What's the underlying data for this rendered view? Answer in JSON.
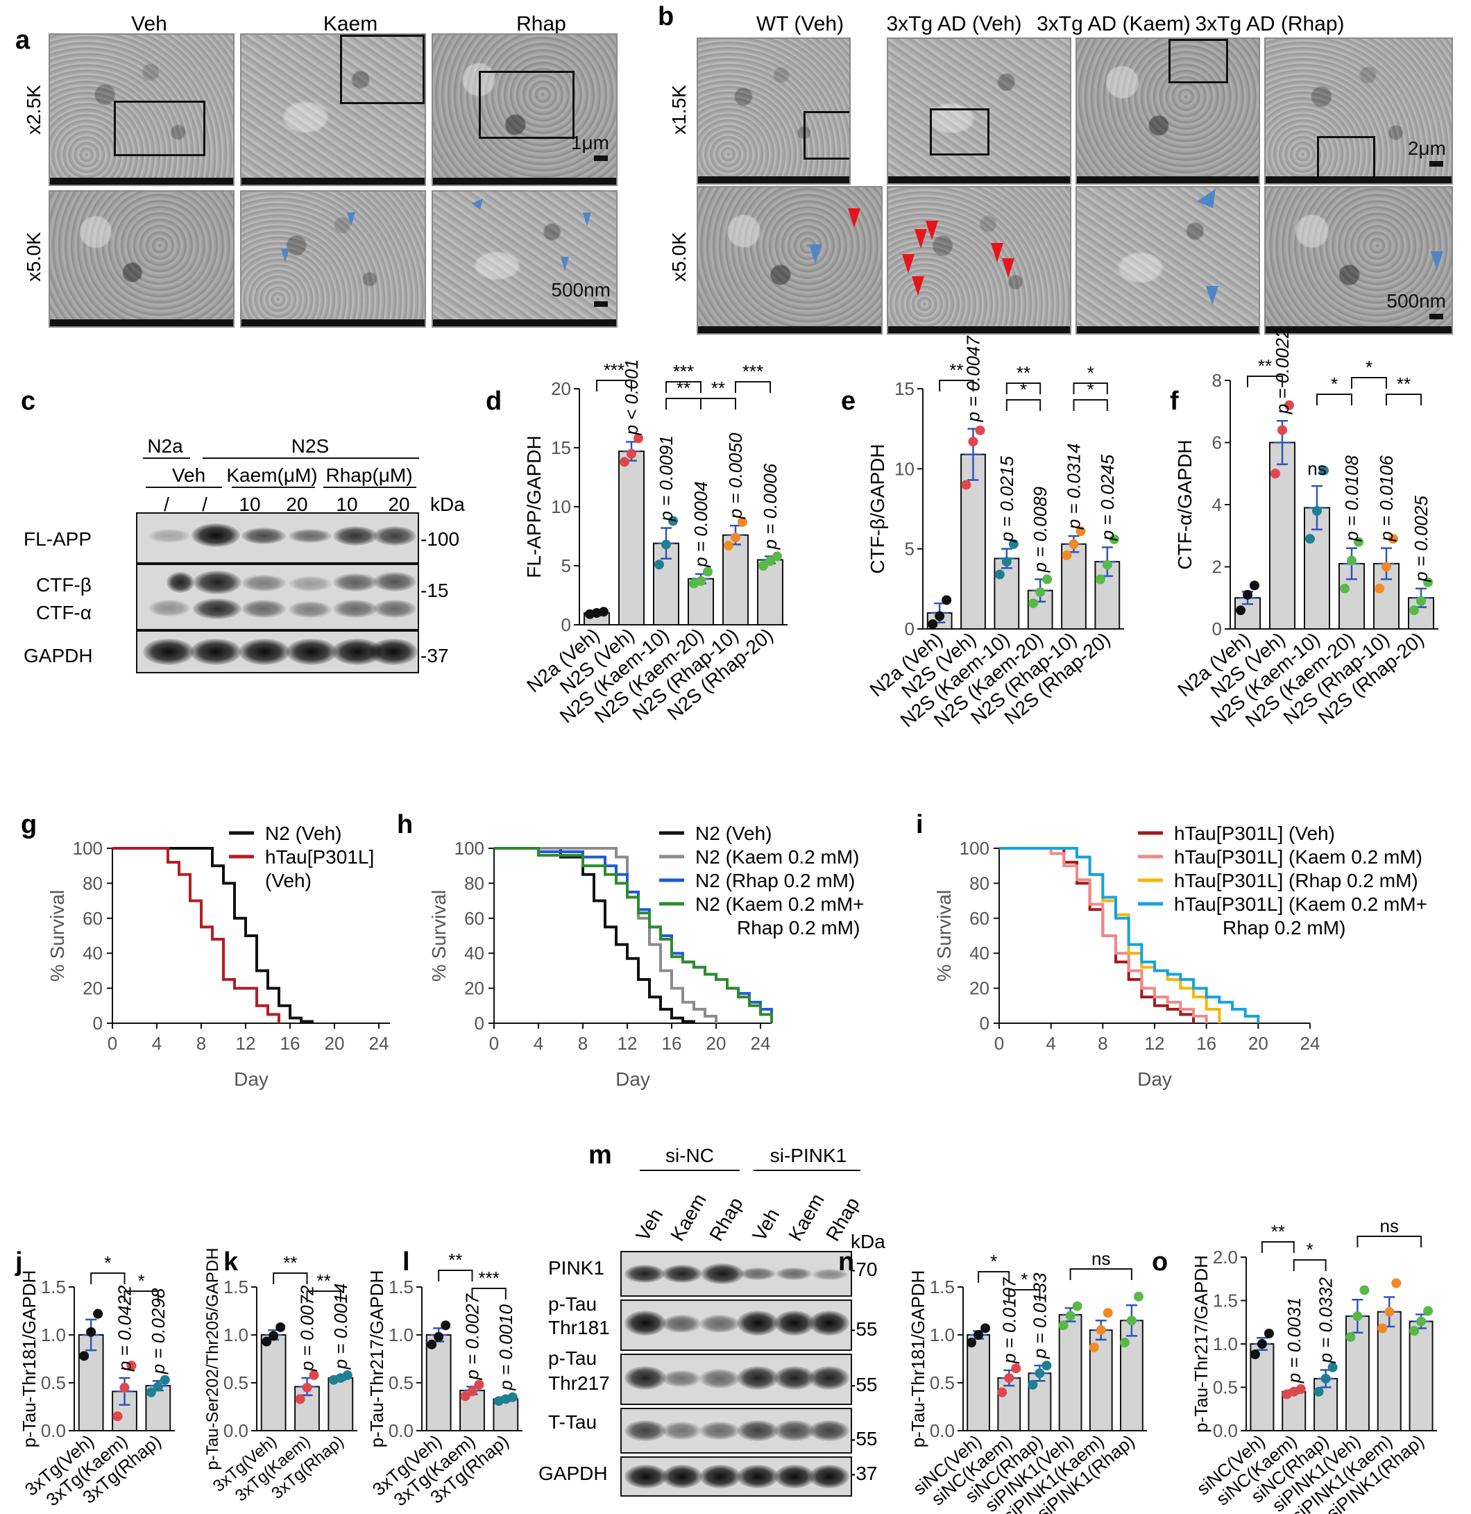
{
  "panel_letters": {
    "a": "a",
    "b": "b",
    "c": "c",
    "d": "d",
    "e": "e",
    "f": "f",
    "g": "g",
    "h": "h",
    "i": "i",
    "j": "j",
    "k": "k",
    "l": "l",
    "m": "m",
    "n": "n",
    "o": "o"
  },
  "panel_a": {
    "columns": [
      "Veh",
      "Kaem",
      "Rhap"
    ],
    "rows": [
      "x2.5K",
      "x5.0K"
    ],
    "scale_top": "1μm",
    "scale_bottom": "500nm"
  },
  "panel_b": {
    "columns": [
      "WT (Veh)",
      "3xTg AD (Veh)",
      "3xTg AD (Kaem)",
      "3xTg AD (Rhap)"
    ],
    "rows": [
      "x1.5K",
      "x5.0K"
    ],
    "scale_top": "2μm",
    "scale_bottom": "500nm"
  },
  "panel_c": {
    "group_n2a": "N2a",
    "group_n2s": "N2S",
    "veh": "Veh",
    "kaem": "Kaem(μM)",
    "rhap": "Rhap(μM)",
    "lane_labels": [
      "/",
      "/",
      "10",
      "20",
      "10",
      "20"
    ],
    "kda": "kDa",
    "rows": [
      "FL-APP",
      "CTF-β",
      "CTF-α",
      "GAPDH"
    ],
    "markers": [
      "-100",
      "-15",
      "-37"
    ]
  },
  "panel_m": {
    "group1": "si-NC",
    "group2": "si-PINK1",
    "lanes": [
      "Veh",
      "Kaem",
      "Rhap",
      "Veh",
      "Kaem",
      "Rhap"
    ],
    "kda": "kDa",
    "rows": [
      "PINK1",
      "p-Tau\nThr181",
      "p-Tau\nThr217",
      "T-Tau",
      "GAPDH"
    ],
    "row_label_lines": [
      [
        "PINK1"
      ],
      [
        "p-Tau",
        "Thr181"
      ],
      [
        "p-Tau",
        "Thr217"
      ],
      [
        "T-Tau"
      ],
      [
        "GAPDH"
      ]
    ],
    "markers": [
      "-70",
      "-55",
      "-55",
      "-55",
      "-37"
    ]
  },
  "colors": {
    "gray_bar": "#d4d4d4",
    "black": "#111111",
    "red": "#e0474c",
    "teal": "#1f7f93",
    "green": "#59b848",
    "orange": "#f08a24",
    "blue_err": "#2e55b8",
    "arrow_red": "#e8141c",
    "arrow_blue": "#4f86c6"
  },
  "chart_data": [
    {
      "id": "d",
      "type": "bar",
      "ylabel": "FL-APP/GAPDH",
      "ylim": [
        0,
        20
      ],
      "yticks": [
        0,
        5,
        10,
        15,
        20
      ],
      "categories": [
        "N2a (Veh)",
        "N2S (Veh)",
        "N2S (Kaem-10)",
        "N2S (Kaem-20)",
        "N2S (Rhap-10)",
        "N2S (Rhap-20)"
      ],
      "values": [
        1.0,
        14.7,
        6.9,
        3.9,
        7.6,
        5.5
      ],
      "sem": [
        0.2,
        0.8,
        1.3,
        0.4,
        0.8,
        0.3
      ],
      "points": [
        [
          0.9,
          1.0,
          1.1
        ],
        [
          13.8,
          14.5,
          15.8
        ],
        [
          5.1,
          6.8,
          8.8
        ],
        [
          3.5,
          3.7,
          4.5
        ],
        [
          6.7,
          7.4,
          8.7
        ],
        [
          5.0,
          5.4,
          5.8
        ]
      ],
      "point_colors": [
        "black",
        "red",
        "teal",
        "green",
        "orange",
        "green"
      ],
      "pvalues": [
        "",
        "p < 0.001",
        "p = 0.0091",
        "p = 0.0004",
        "p = 0.0050",
        "p = 0.0006"
      ],
      "sig": [
        "***",
        "**",
        "***",
        "**",
        "***"
      ]
    },
    {
      "id": "e",
      "type": "bar",
      "ylabel": "CTF-β/GAPDH",
      "ylim": [
        0,
        15
      ],
      "yticks": [
        0,
        5,
        10,
        15
      ],
      "categories": [
        "N2a (Veh)",
        "N2S (Veh)",
        "N2S (Kaem-10)",
        "N2S (Kaem-20)",
        "N2S (Rhap-10)",
        "N2S (Rhap-20)"
      ],
      "values": [
        1.0,
        10.9,
        4.4,
        2.4,
        5.3,
        4.2
      ],
      "sem": [
        0.6,
        1.6,
        0.6,
        0.7,
        0.5,
        0.9
      ],
      "points": [
        [
          0.3,
          0.8,
          1.8
        ],
        [
          9.0,
          11.7,
          12.4
        ],
        [
          3.4,
          4.2,
          5.3
        ],
        [
          1.6,
          2.3,
          3.1
        ],
        [
          4.6,
          5.3,
          6.1
        ],
        [
          3.1,
          4.0,
          5.6
        ]
      ],
      "point_colors": [
        "black",
        "red",
        "teal",
        "green",
        "orange",
        "green"
      ],
      "pvalues": [
        "",
        "p = 0.0047",
        "p = 0.0215",
        "p = 0.0089",
        "p = 0.0314",
        "p = 0.0245"
      ],
      "sig": [
        "**",
        "*",
        "**",
        "*",
        "*"
      ]
    },
    {
      "id": "f",
      "type": "bar",
      "ylabel": "CTF-α/GAPDH",
      "ylim": [
        0,
        8
      ],
      "yticks": [
        0,
        2,
        4,
        6,
        8
      ],
      "categories": [
        "N2a (Veh)",
        "N2S (Veh)",
        "N2S (Kaem-10)",
        "N2S (Kaem-20)",
        "N2S (Rhap-10)",
        "N2S (Rhap-20)"
      ],
      "values": [
        1.0,
        6.0,
        3.9,
        2.1,
        2.1,
        1.0
      ],
      "sem": [
        0.2,
        0.7,
        0.7,
        0.5,
        0.5,
        0.3
      ],
      "points": [
        [
          0.6,
          1.1,
          1.4
        ],
        [
          5.0,
          6.4,
          7.2
        ],
        [
          2.9,
          3.8,
          5.1
        ],
        [
          1.3,
          2.2,
          2.8
        ],
        [
          1.3,
          2.0,
          2.9
        ],
        [
          0.6,
          0.9,
          1.5
        ]
      ],
      "point_colors": [
        "black",
        "red",
        "teal",
        "green",
        "orange",
        "green"
      ],
      "pvalues": [
        "",
        "p = 0.0022",
        "ns",
        "p = 0.0108",
        "p = 0.0106",
        "p = 0.0025"
      ],
      "sig": [
        "**",
        "*",
        "*",
        "**"
      ]
    },
    {
      "id": "g",
      "type": "line",
      "xlabel": "Day",
      "ylabel": "% Survival",
      "xlim": [
        0,
        25
      ],
      "ylim": [
        0,
        100
      ],
      "xticks": [
        0,
        4,
        8,
        12,
        16,
        20,
        24
      ],
      "yticks": [
        0,
        20,
        40,
        60,
        80,
        100
      ],
      "series": [
        {
          "name": "N2 (Veh)",
          "color": "#111111",
          "x": [
            0,
            8,
            9,
            10,
            11,
            12,
            13,
            14,
            15,
            16,
            17,
            18
          ],
          "y": [
            100,
            100,
            90,
            80,
            60,
            50,
            30,
            20,
            10,
            3,
            1,
            0
          ]
        },
        {
          "name": "hTau[P301L] (Veh)",
          "color": "#b21e23",
          "x": [
            0,
            4,
            5,
            6,
            7,
            8,
            9,
            10,
            11,
            13,
            14,
            15
          ],
          "y": [
            100,
            100,
            92,
            85,
            70,
            55,
            48,
            25,
            20,
            10,
            5,
            0
          ]
        }
      ]
    },
    {
      "id": "h",
      "type": "line",
      "xlabel": "Day",
      "ylabel": "% Survival",
      "xlim": [
        0,
        25
      ],
      "ylim": [
        0,
        100
      ],
      "xticks": [
        0,
        4,
        8,
        12,
        16,
        20,
        24
      ],
      "yticks": [
        0,
        20,
        40,
        60,
        80,
        100
      ],
      "series": [
        {
          "name": "N2 (Veh)",
          "color": "#111111",
          "x": [
            0,
            6,
            8,
            9,
            10,
            11,
            12,
            13,
            14,
            15,
            16,
            17,
            18
          ],
          "y": [
            100,
            95,
            85,
            70,
            55,
            45,
            37,
            25,
            15,
            8,
            3,
            1,
            0
          ]
        },
        {
          "name": "N2 (Kaem 0.2 mM)",
          "color": "#8c8c8c",
          "x": [
            0,
            10,
            11,
            12,
            13,
            14,
            15,
            16,
            17,
            18,
            19,
            20
          ],
          "y": [
            100,
            100,
            95,
            75,
            60,
            45,
            30,
            20,
            12,
            8,
            4,
            0
          ]
        },
        {
          "name": "N2 (Rhap 0.2 mM)",
          "color": "#1e5bd8",
          "x": [
            0,
            4,
            8,
            10,
            11,
            12,
            13,
            14,
            15,
            16,
            17,
            18,
            19,
            20,
            21,
            22,
            23,
            24,
            25
          ],
          "y": [
            100,
            98,
            95,
            90,
            85,
            75,
            65,
            55,
            50,
            40,
            35,
            32,
            28,
            25,
            20,
            17,
            12,
            8,
            2
          ]
        },
        {
          "name": "N2 (Kaem 0.2 mM+ Rhap 0.2 mM)",
          "color": "#2e8b2e",
          "x": [
            0,
            4,
            8,
            10,
            11,
            12,
            13,
            14,
            15,
            16,
            17,
            18,
            19,
            20,
            21,
            22,
            23,
            24,
            25
          ],
          "y": [
            100,
            96,
            90,
            85,
            80,
            72,
            63,
            55,
            48,
            38,
            35,
            32,
            28,
            25,
            20,
            15,
            10,
            5,
            0
          ]
        }
      ]
    },
    {
      "id": "i",
      "type": "line",
      "xlabel": "Day",
      "ylabel": "% Survival",
      "xlim": [
        0,
        24
      ],
      "ylim": [
        0,
        100
      ],
      "xticks": [
        0,
        4,
        8,
        12,
        16,
        20,
        24
      ],
      "yticks": [
        0,
        20,
        40,
        60,
        80,
        100
      ],
      "series": [
        {
          "name": "hTau[P301L] (Veh)",
          "color": "#a31a1a",
          "x": [
            0,
            4,
            5,
            6,
            7,
            8,
            9,
            10,
            11,
            12,
            13,
            14,
            15
          ],
          "y": [
            100,
            100,
            92,
            80,
            65,
            50,
            35,
            25,
            15,
            10,
            8,
            5,
            0
          ]
        },
        {
          "name": "hTau[P301L] (Kaem 0.2 mM)",
          "color": "#ee8a8a",
          "x": [
            0,
            4,
            5,
            6,
            7,
            8,
            9,
            10,
            11,
            12,
            13,
            14,
            15,
            16
          ],
          "y": [
            100,
            97,
            90,
            82,
            68,
            50,
            40,
            30,
            20,
            15,
            12,
            8,
            4,
            0
          ]
        },
        {
          "name": "hTau[P301L] (Rhap 0.2 mM)",
          "color": "#f2b705",
          "x": [
            0,
            6,
            7,
            8,
            9,
            10,
            11,
            12,
            13,
            14,
            15,
            16,
            17
          ],
          "y": [
            100,
            95,
            85,
            70,
            62,
            40,
            32,
            30,
            25,
            20,
            15,
            8,
            0
          ]
        },
        {
          "name": "hTau[P301L] (Kaem 0.2 mM+ Rhap 0.2 mM)",
          "color": "#12a3e0",
          "x": [
            0,
            6,
            7,
            8,
            9,
            10,
            11,
            12,
            13,
            14,
            15,
            16,
            17,
            18,
            19,
            20
          ],
          "y": [
            100,
            95,
            85,
            72,
            60,
            45,
            35,
            30,
            28,
            25,
            20,
            15,
            12,
            8,
            4,
            0
          ]
        }
      ]
    },
    {
      "id": "j",
      "type": "bar",
      "ylabel": "p-Tau-Thr181/GAPDH",
      "ylim": [
        0,
        1.5
      ],
      "yticks": [
        0,
        0.5,
        1.0,
        1.5
      ],
      "categories": [
        "3xTg(Veh)",
        "3xTg(Kaem)",
        "3xTg(Rhap)"
      ],
      "values": [
        1.0,
        0.41,
        0.47
      ],
      "sem": [
        0.16,
        0.14,
        0.05
      ],
      "points": [
        [
          0.78,
          1.03,
          1.22
        ],
        [
          0.15,
          0.45,
          0.68
        ],
        [
          0.4,
          0.46,
          0.53
        ]
      ],
      "point_colors": [
        "black",
        "red",
        "teal"
      ],
      "pvalues": [
        "",
        "p = 0.0422",
        "p = 0.0298"
      ],
      "sig": [
        "*",
        "*"
      ]
    },
    {
      "id": "k",
      "type": "bar",
      "ylabel": "p-Tau-Ser202/Thr205/GAPDH",
      "ylim": [
        0,
        1.5
      ],
      "yticks": [
        0,
        0.5,
        1.0,
        1.5
      ],
      "categories": [
        "3xTg(Veh)",
        "3xTg(Kaem)",
        "3xTg(Rhap)"
      ],
      "values": [
        1.0,
        0.46,
        0.55
      ],
      "sem": [
        0.05,
        0.09,
        0.02
      ],
      "points": [
        [
          0.93,
          0.99,
          1.08
        ],
        [
          0.33,
          0.45,
          0.58
        ],
        [
          0.53,
          0.55,
          0.58
        ]
      ],
      "point_colors": [
        "black",
        "red",
        "teal"
      ],
      "pvalues": [
        "",
        "p = 0.0072",
        "p = 0.0014"
      ],
      "sig": [
        "**",
        "**"
      ]
    },
    {
      "id": "l",
      "type": "bar",
      "ylabel": "p-Tau-Thr217/GAPDH",
      "ylim": [
        0,
        1.5
      ],
      "yticks": [
        0,
        0.5,
        1.0,
        1.5
      ],
      "categories": [
        "3xTg(Veh)",
        "3xTg(Kaem)",
        "3xTg(Rhap)"
      ],
      "values": [
        1.0,
        0.42,
        0.33
      ],
      "sem": [
        0.07,
        0.04,
        0.02
      ],
      "points": [
        [
          0.9,
          0.98,
          1.1
        ],
        [
          0.36,
          0.41,
          0.48
        ],
        [
          0.31,
          0.33,
          0.35
        ]
      ],
      "point_colors": [
        "black",
        "red",
        "teal"
      ],
      "pvalues": [
        "",
        "p = 0.0027",
        "p = 0.0010"
      ],
      "sig": [
        "**",
        "***"
      ]
    },
    {
      "id": "n",
      "type": "bar",
      "ylabel": "p-Tau-Thr181/GAPDH",
      "ylim": [
        0,
        1.5
      ],
      "yticks": [
        0,
        0.5,
        1.0,
        1.5
      ],
      "categories": [
        "siNC(Veh)",
        "siNC(Kaem)",
        "siNC(Rhap)",
        "siPINK1(Veh)",
        "siPINK1(Kaem)",
        "siPINK1(Rhap)"
      ],
      "values": [
        1.0,
        0.55,
        0.6,
        1.21,
        1.05,
        1.15
      ],
      "sem": [
        0.04,
        0.08,
        0.08,
        0.07,
        0.1,
        0.16
      ],
      "points": [
        [
          0.92,
          1.0,
          1.07
        ],
        [
          0.4,
          0.55,
          0.65
        ],
        [
          0.48,
          0.6,
          0.68
        ],
        [
          1.1,
          1.2,
          1.3
        ],
        [
          0.87,
          1.05,
          1.23
        ],
        [
          0.92,
          1.15,
          1.4
        ]
      ],
      "point_colors": [
        "black",
        "red",
        "teal",
        "green",
        "orange",
        "green"
      ],
      "pvalues": [
        "",
        "p = 0.0107",
        "p = 0.0133",
        "",
        "",
        ""
      ],
      "sig": [
        "*",
        "*",
        "ns"
      ]
    },
    {
      "id": "o",
      "type": "bar",
      "ylabel": "p-Tau-Thr217/GAPDH",
      "ylim": [
        0,
        2.0
      ],
      "yticks": [
        0,
        0.5,
        1.0,
        1.5,
        2.0
      ],
      "categories": [
        "siNC(Veh)",
        "siNC(Kaem)",
        "siNC(Rhap)",
        "siPINK1(Veh)",
        "siPINK1(Kaem)",
        "siPINK1(Rhap)"
      ],
      "values": [
        1.0,
        0.45,
        0.6,
        1.32,
        1.37,
        1.26
      ],
      "sem": [
        0.07,
        0.02,
        0.1,
        0.19,
        0.17,
        0.08
      ],
      "points": [
        [
          0.88,
          1.0,
          1.12
        ],
        [
          0.42,
          0.45,
          0.48
        ],
        [
          0.45,
          0.6,
          0.73
        ],
        [
          1.08,
          1.32,
          1.62
        ],
        [
          1.18,
          1.37,
          1.7
        ],
        [
          1.15,
          1.26,
          1.38
        ]
      ],
      "point_colors": [
        "black",
        "red",
        "teal",
        "green",
        "orange",
        "green"
      ],
      "pvalues": [
        "",
        "p = 0.0031",
        "p = 0.0332",
        "",
        "",
        ""
      ],
      "sig": [
        "**",
        "*",
        "ns"
      ]
    }
  ]
}
